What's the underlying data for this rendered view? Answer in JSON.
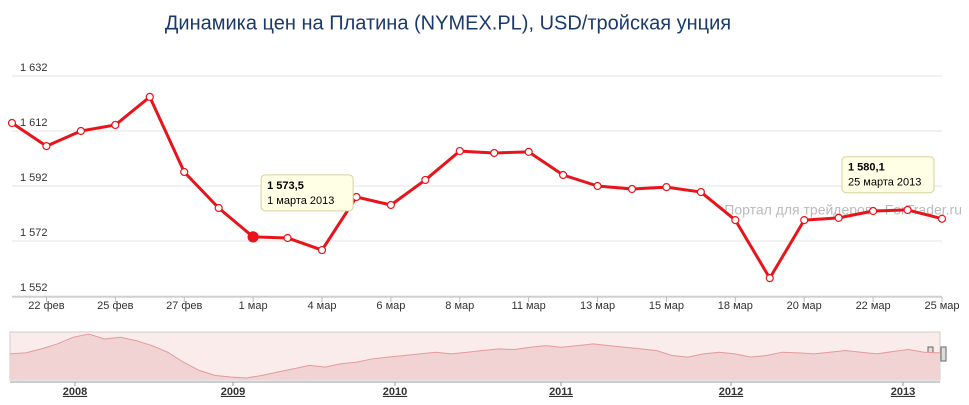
{
  "chart_data": {
    "type": "line",
    "title": "Динамика цен на Платина (NYMEX.PL), USD/тройская унция",
    "categories": [
      null,
      "22 фев",
      null,
      "25 фев",
      null,
      "27 фев",
      null,
      "1 мар",
      null,
      "4 мар",
      null,
      "6 мар",
      null,
      "8 мар",
      null,
      "11 мар",
      null,
      "13 мар",
      null,
      "15 мар",
      null,
      "18 мар",
      null,
      "20 мар",
      null,
      "22 мар",
      null,
      "25 мар"
    ],
    "series": [
      {
        "color": "#e8141b",
        "values": [
          1614.9,
          1606.5,
          1612.0,
          1614.2,
          1624.4,
          1597.1,
          1584.0,
          1573.5,
          1573.1,
          1568.7,
          1588.0,
          1585.1,
          1594.2,
          1604.7,
          1604.0,
          1604.4,
          1596.0,
          1592.0,
          1590.9,
          1591.6,
          1589.8,
          1579.6,
          1558.5,
          1579.6,
          1580.4,
          1582.9,
          1583.3,
          1580.1
        ],
        "value_labels": [
          null,
          null,
          null,
          null,
          null,
          null,
          null,
          "1 573,5",
          null,
          null,
          null,
          null,
          null,
          null,
          null,
          null,
          null,
          null,
          null,
          null,
          null,
          null,
          null,
          null,
          null,
          null,
          null,
          "1 580,1"
        ],
        "date_labels": [
          null,
          null,
          null,
          null,
          null,
          null,
          null,
          "1 марта 2013",
          null,
          null,
          null,
          null,
          null,
          null,
          null,
          null,
          null,
          null,
          null,
          null,
          null,
          null,
          null,
          null,
          null,
          null,
          null,
          "25 марта 2013"
        ]
      }
    ],
    "ylim": [
      1552,
      1636
    ],
    "yticks": [
      {
        "value": 1552,
        "label": "1 552"
      },
      {
        "value": 1572,
        "label": "1 572"
      },
      {
        "value": 1592,
        "label": "1 592"
      },
      {
        "value": 1612,
        "label": "1 612"
      },
      {
        "value": 1632,
        "label": "1 632"
      }
    ],
    "grid": true,
    "watermark": "Портал для трейдеров - ForTrader.ru",
    "navigator": {
      "years": [
        "2008",
        "2009",
        "2010",
        "2011",
        "2012",
        "2013"
      ],
      "values": [
        1550,
        1580,
        1700,
        1850,
        2050,
        2150,
        2000,
        2050,
        1950,
        1800,
        1600,
        1300,
        1050,
        900,
        850,
        820,
        900,
        1000,
        1100,
        1200,
        1150,
        1250,
        1300,
        1400,
        1450,
        1500,
        1550,
        1600,
        1550,
        1600,
        1650,
        1700,
        1680,
        1750,
        1800,
        1750,
        1800,
        1850,
        1800,
        1750,
        1700,
        1650,
        1500,
        1450,
        1550,
        1600,
        1550,
        1450,
        1500,
        1600,
        1580,
        1550,
        1600,
        1650,
        1600,
        1550,
        1620,
        1680,
        1600,
        1580
      ]
    }
  }
}
